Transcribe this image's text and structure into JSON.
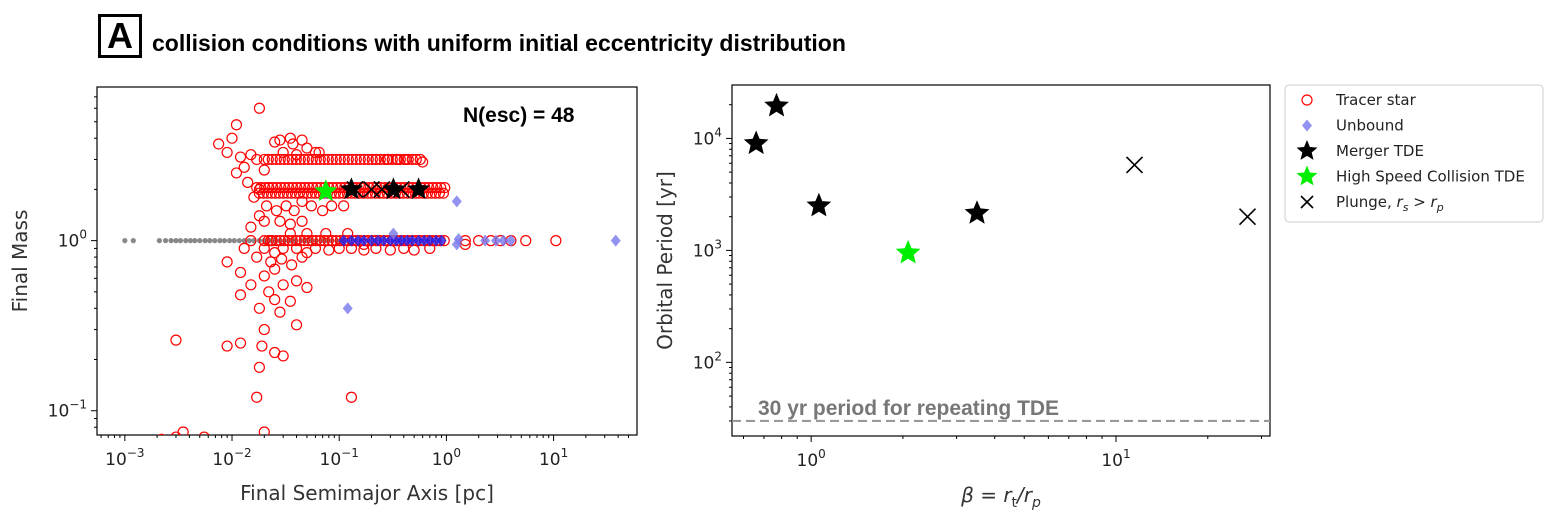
{
  "figure": {
    "panel_label": "A",
    "title": "collision conditions with uniform initial eccentricity distribution"
  },
  "colors": {
    "tracer": "#ff0000",
    "unbound": "#7777ee",
    "unbound_dense": "#2222ee",
    "escaped": "#888888",
    "merger": "#000000",
    "highspeed": "#00ee00",
    "plunge": "#000000",
    "refline": "#999999"
  },
  "legend": {
    "items": [
      {
        "key": "tracer",
        "label": "Tracer star"
      },
      {
        "key": "unbound",
        "label": "Unbound"
      },
      {
        "key": "merger",
        "label": "Merger TDE"
      },
      {
        "key": "highspeed",
        "label": "High Speed Collision TDE"
      },
      {
        "key": "plunge",
        "label": "Plunge, ",
        "math": "r_s > r_p"
      }
    ]
  },
  "chart_data": [
    {
      "type": "scatter",
      "name": "left",
      "xlabel": "Final Semimajor Axis [pc]",
      "ylabel": "Final Mass",
      "xscale": "log",
      "yscale": "log",
      "xlim": [
        0.00055,
        60
      ],
      "ylim": [
        0.072,
        8
      ],
      "xticks": [
        {
          "value": 0.001,
          "base": "10",
          "exp": "−3"
        },
        {
          "value": 0.01,
          "base": "10",
          "exp": "−2"
        },
        {
          "value": 0.1,
          "base": "10",
          "exp": "−1"
        },
        {
          "value": 1,
          "base": "10",
          "exp": "0"
        },
        {
          "value": 10,
          "base": "10",
          "exp": "1"
        }
      ],
      "yticks": [
        {
          "value": 0.1,
          "base": "10",
          "exp": "−1"
        },
        {
          "value": 1,
          "base": "10",
          "exp": "0"
        }
      ],
      "annotation": "N(esc) = 48",
      "series": [
        {
          "name": "Escaped",
          "marker": "dot",
          "color_key": "escaped",
          "points": [
            [
              0.001,
              1
            ],
            [
              0.0012,
              1
            ],
            [
              0.0021,
              1
            ],
            [
              0.0024,
              1
            ],
            [
              0.0027,
              1
            ],
            [
              0.003,
              1
            ],
            [
              0.0033,
              1
            ],
            [
              0.0037,
              1
            ],
            [
              0.0041,
              1
            ],
            [
              0.0045,
              1
            ],
            [
              0.005,
              1
            ],
            [
              0.0056,
              1
            ],
            [
              0.0062,
              1
            ],
            [
              0.0069,
              1
            ],
            [
              0.0077,
              1
            ],
            [
              0.0085,
              1
            ],
            [
              0.0095,
              1
            ],
            [
              0.0105,
              1
            ],
            [
              0.0117,
              1
            ],
            [
              0.013,
              1
            ],
            [
              0.0145,
              1
            ],
            [
              0.016,
              1
            ],
            [
              0.018,
              1
            ],
            [
              0.02,
              1
            ],
            [
              0.0225,
              1
            ],
            [
              0.025,
              1
            ],
            [
              0.028,
              1
            ],
            [
              0.031,
              1
            ],
            [
              0.035,
              1
            ],
            [
              0.039,
              1
            ],
            [
              0.044,
              1
            ],
            [
              0.049,
              1
            ],
            [
              0.055,
              1
            ],
            [
              0.061,
              1
            ],
            [
              0.068,
              1
            ],
            [
              0.076,
              1
            ],
            [
              0.085,
              1
            ],
            [
              0.095,
              1
            ],
            [
              0.107,
              1
            ]
          ]
        },
        {
          "name": "Tracer star",
          "marker": "circle-open",
          "color_key": "tracer",
          "points": [
            [
              0.018,
              6
            ],
            [
              0.011,
              4.8
            ],
            [
              0.0075,
              3.7
            ],
            [
              0.009,
              3.3
            ],
            [
              0.01,
              4.0
            ],
            [
              0.012,
              3.1
            ],
            [
              0.015,
              3.2
            ],
            [
              0.013,
              2.7
            ],
            [
              0.011,
              2.5
            ],
            [
              0.02,
              2.6
            ],
            [
              0.025,
              3.8
            ],
            [
              0.028,
              3.9
            ],
            [
              0.035,
              4.0
            ],
            [
              0.037,
              3.7
            ],
            [
              0.045,
              3.9
            ],
            [
              0.05,
              3.5
            ],
            [
              0.06,
              3.3
            ],
            [
              0.065,
              3.3
            ],
            [
              0.03,
              3.3
            ],
            [
              0.04,
              3.2
            ],
            [
              0.017,
              3.0
            ],
            [
              0.014,
              2.2
            ],
            [
              0.016,
              1.8
            ],
            [
              0.021,
              1.6
            ],
            [
              0.026,
              1.5
            ],
            [
              0.032,
              1.6
            ],
            [
              0.038,
              1.5
            ],
            [
              0.045,
              1.7
            ],
            [
              0.055,
              1.6
            ],
            [
              0.07,
              1.5
            ],
            [
              0.085,
              1.6
            ],
            [
              0.11,
              1.6
            ],
            [
              0.018,
              1.4
            ],
            [
              0.02,
              1.3
            ],
            [
              0.028,
              1.3
            ],
            [
              0.035,
              1.25
            ],
            [
              0.015,
              1.2
            ],
            [
              0.045,
              1.3
            ],
            [
              0.013,
              0.9
            ],
            [
              0.02,
              0.9
            ],
            [
              0.025,
              0.85
            ],
            [
              0.03,
              0.9
            ],
            [
              0.04,
              0.9
            ],
            [
              0.05,
              0.85
            ],
            [
              0.06,
              0.9
            ],
            [
              0.08,
              0.88
            ],
            [
              0.1,
              0.9
            ],
            [
              0.13,
              0.9
            ],
            [
              0.17,
              0.88
            ],
            [
              0.22,
              0.9
            ],
            [
              0.3,
              0.88
            ],
            [
              0.4,
              0.9
            ],
            [
              0.5,
              0.88
            ],
            [
              0.7,
              0.9
            ],
            [
              0.009,
              0.75
            ],
            [
              0.017,
              0.8
            ],
            [
              0.023,
              0.75
            ],
            [
              0.029,
              0.78
            ],
            [
              0.036,
              0.72
            ],
            [
              0.045,
              0.8
            ],
            [
              0.012,
              0.65
            ],
            [
              0.02,
              0.62
            ],
            [
              0.025,
              0.68
            ],
            [
              0.015,
              0.55
            ],
            [
              0.022,
              0.5
            ],
            [
              0.03,
              0.55
            ],
            [
              0.04,
              0.58
            ],
            [
              0.05,
              0.53
            ],
            [
              0.012,
              0.48
            ],
            [
              0.025,
              0.45
            ],
            [
              0.035,
              0.44
            ],
            [
              0.018,
              0.4
            ],
            [
              0.028,
              0.38
            ],
            [
              0.02,
              0.3
            ],
            [
              0.04,
              0.32
            ],
            [
              0.009,
              0.24
            ],
            [
              0.012,
              0.25
            ],
            [
              0.019,
              0.24
            ],
            [
              0.025,
              0.22
            ],
            [
              0.03,
              0.21
            ],
            [
              0.003,
              0.26
            ],
            [
              0.017,
              0.12
            ],
            [
              0.13,
              0.12
            ],
            [
              0.02,
              0.075
            ],
            [
              0.0022,
              0.068
            ],
            [
              0.003,
              0.07
            ],
            [
              0.0035,
              0.075
            ],
            [
              0.0055,
              0.07
            ],
            [
              0.018,
              0.18
            ],
            [
              0.22,
              3.0
            ],
            [
              0.28,
              3.0
            ],
            [
              0.35,
              3.0
            ],
            [
              0.42,
              3.0
            ],
            [
              0.6,
              2.9
            ],
            [
              1.5,
              1.0
            ],
            [
              2.0,
              1.0
            ],
            [
              2.6,
              1.0
            ],
            [
              3.2,
              1.0
            ],
            [
              4.0,
              1.0
            ],
            [
              5.5,
              1.0
            ],
            [
              10.5,
              1.0
            ],
            [
              1.5,
              0.95
            ],
            [
              0.17,
              0.95
            ],
            [
              0.015,
              1.0
            ],
            [
              0.023,
              1.0
            ],
            [
              0.035,
              1.1
            ],
            [
              0.05,
              1.1
            ],
            [
              0.075,
              1.1
            ],
            [
              0.12,
              1.1
            ],
            [
              0.018,
              2.0
            ],
            [
              0.022,
              2.05
            ]
          ]
        },
        {
          "name": "Tracer band",
          "marker": "band",
          "color_key": "tracer",
          "bands": [
            {
              "y": 3.0,
              "x0": 0.02,
              "x1": 0.55
            },
            {
              "y": 2.05,
              "x0": 0.017,
              "x1": 1.0
            },
            {
              "y": 1.9,
              "x0": 0.018,
              "x1": 0.9
            },
            {
              "y": 1.0,
              "x0": 0.02,
              "x1": 0.95
            }
          ]
        },
        {
          "name": "Unbound",
          "marker": "diamond",
          "color_key": "unbound",
          "points": [
            [
              0.11,
              1
            ],
            [
              0.13,
              1
            ],
            [
              0.15,
              1
            ],
            [
              0.17,
              1
            ],
            [
              0.2,
              1
            ],
            [
              0.23,
              1
            ],
            [
              0.26,
              1
            ],
            [
              0.3,
              1
            ],
            [
              0.34,
              1
            ],
            [
              0.38,
              1
            ],
            [
              0.43,
              1
            ],
            [
              0.48,
              1
            ],
            [
              0.55,
              1
            ],
            [
              0.62,
              1
            ],
            [
              0.7,
              1
            ],
            [
              0.8,
              1
            ],
            [
              0.9,
              1
            ],
            [
              0.32,
              1.1
            ],
            [
              0.12,
              0.4
            ],
            [
              1.25,
              1.7
            ],
            [
              1.25,
              0.95
            ],
            [
              1.3,
              1.02
            ],
            [
              2.3,
              1.0
            ],
            [
              2.9,
              1.0
            ],
            [
              3.4,
              1.0
            ],
            [
              4.0,
              1.0
            ],
            [
              38,
              1.0
            ],
            [
              0.075,
              1.9
            ]
          ]
        },
        {
          "name": "Merger TDE",
          "marker": "star",
          "color_key": "merger",
          "points": [
            [
              0.13,
              2.0
            ],
            [
              0.32,
              2.0
            ],
            [
              0.55,
              2.0
            ]
          ]
        },
        {
          "name": "Plunge",
          "marker": "x",
          "color_key": "plunge",
          "points": [
            [
              0.14,
              2.0
            ],
            [
              0.2,
              2.0
            ],
            [
              0.25,
              2.0
            ],
            [
              0.38,
              2.0
            ]
          ]
        },
        {
          "name": "High Speed Collision TDE",
          "marker": "star",
          "color_key": "highspeed",
          "points": [
            [
              0.075,
              1.95
            ]
          ]
        }
      ]
    },
    {
      "type": "scatter",
      "name": "right",
      "xlabel": "β = r_t/r_p",
      "ylabel": "Orbital Period [yr]",
      "xscale": "log",
      "yscale": "log",
      "xlim": [
        0.55,
        32
      ],
      "ylim": [
        22,
        30000
      ],
      "xticks": [
        {
          "value": 1,
          "base": "10",
          "exp": "0"
        },
        {
          "value": 10,
          "base": "10",
          "exp": "1"
        }
      ],
      "yticks": [
        {
          "value": 100,
          "base": "10",
          "exp": "2"
        },
        {
          "value": 1000,
          "base": "10",
          "exp": "3"
        },
        {
          "value": 10000,
          "base": "10",
          "exp": "4"
        }
      ],
      "reference_line": {
        "y": 30,
        "label": "30 yr period for repeating TDE"
      },
      "series": [
        {
          "name": "Merger TDE",
          "marker": "star",
          "color_key": "merger",
          "points": [
            [
              0.66,
              9000
            ],
            [
              0.77,
              19500
            ],
            [
              1.06,
              2500
            ],
            [
              3.5,
              2150
            ]
          ]
        },
        {
          "name": "High Speed Collision TDE",
          "marker": "star",
          "color_key": "highspeed",
          "points": [
            [
              2.08,
              950
            ]
          ]
        },
        {
          "name": "Plunge",
          "marker": "x",
          "color_key": "plunge",
          "points": [
            [
              11.5,
              5800
            ],
            [
              27,
              2000
            ]
          ]
        }
      ]
    }
  ]
}
